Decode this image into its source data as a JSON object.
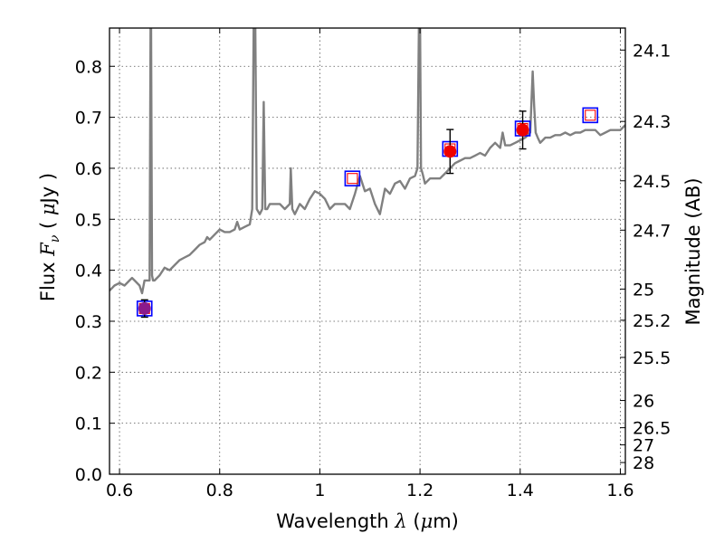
{
  "chart_data": {
    "type": "scatter",
    "xlabel": "Wavelength  λ (μm)",
    "xlabel_parts": {
      "text": "Wavelength  ",
      "sym": "λ",
      "open": " (",
      "unit_mu": "μ",
      "unit_rest": "m)"
    },
    "ylabel": "Flux  Fν  ( μJy )",
    "ylabel_parts": {
      "text": "Flux  ",
      "sym": "F",
      "sub": "ν",
      "open": "  ( ",
      "mu": "μ",
      "unit": "Jy )"
    },
    "y2label": "Magnitude (AB)",
    "xlim": [
      0.58,
      1.61
    ],
    "ylim": [
      0.0,
      0.875
    ],
    "grid": true,
    "x_ticks": [
      "0.6",
      "0.8",
      "1",
      "1.2",
      "1.4",
      "1.6"
    ],
    "x_tick_values": [
      0.6,
      0.8,
      1.0,
      1.2,
      1.4,
      1.6
    ],
    "y_ticks": [
      "0.0",
      "0.1",
      "0.2",
      "0.3",
      "0.4",
      "0.5",
      "0.6",
      "0.7",
      "0.8"
    ],
    "y_tick_values": [
      0.0,
      0.1,
      0.2,
      0.3,
      0.4,
      0.5,
      0.6,
      0.7,
      0.8
    ],
    "y2_ticks": [
      "24.1",
      "24.3",
      "24.5",
      "24.7",
      "25",
      "25.2",
      "25.5",
      "26",
      "26.5",
      "27",
      "28"
    ],
    "y2_tick_values": [
      24.1,
      24.3,
      24.5,
      24.7,
      25.0,
      25.2,
      25.5,
      26.0,
      26.5,
      27.0,
      28.0
    ],
    "series": [
      {
        "kind": "line",
        "color": "#808080",
        "x": [
          0.58,
          0.59,
          0.6,
          0.61,
          0.62,
          0.625,
          0.63,
          0.64,
          0.645,
          0.65,
          0.655,
          0.66,
          0.662,
          0.663,
          0.665,
          0.667,
          0.67,
          0.68,
          0.69,
          0.7,
          0.71,
          0.72,
          0.73,
          0.74,
          0.75,
          0.76,
          0.77,
          0.775,
          0.78,
          0.79,
          0.8,
          0.81,
          0.82,
          0.83,
          0.835,
          0.84,
          0.85,
          0.86,
          0.865,
          0.868,
          0.871,
          0.874,
          0.88,
          0.885,
          0.888,
          0.891,
          0.895,
          0.9,
          0.91,
          0.92,
          0.93,
          0.94,
          0.942,
          0.945,
          0.95,
          0.96,
          0.97,
          0.98,
          0.99,
          1.0,
          1.01,
          1.02,
          1.03,
          1.04,
          1.05,
          1.06,
          1.07,
          1.08,
          1.09,
          1.1,
          1.11,
          1.12,
          1.13,
          1.14,
          1.15,
          1.16,
          1.17,
          1.18,
          1.19,
          1.195,
          1.198,
          1.2,
          1.202,
          1.205,
          1.21,
          1.22,
          1.23,
          1.24,
          1.25,
          1.26,
          1.27,
          1.28,
          1.29,
          1.3,
          1.31,
          1.32,
          1.33,
          1.34,
          1.35,
          1.36,
          1.365,
          1.37,
          1.38,
          1.39,
          1.4,
          1.41,
          1.42,
          1.425,
          1.428,
          1.431,
          1.435,
          1.44,
          1.45,
          1.46,
          1.47,
          1.48,
          1.49,
          1.5,
          1.51,
          1.52,
          1.53,
          1.54,
          1.55,
          1.56,
          1.57,
          1.58,
          1.59,
          1.6,
          1.61
        ],
        "y": [
          0.36,
          0.37,
          0.375,
          0.37,
          0.38,
          0.385,
          0.38,
          0.37,
          0.355,
          0.38,
          0.38,
          0.38,
          0.9,
          0.9,
          0.39,
          0.38,
          0.38,
          0.39,
          0.405,
          0.4,
          0.41,
          0.42,
          0.425,
          0.43,
          0.44,
          0.45,
          0.455,
          0.465,
          0.46,
          0.47,
          0.48,
          0.475,
          0.475,
          0.48,
          0.495,
          0.48,
          0.485,
          0.49,
          0.52,
          0.9,
          0.9,
          0.52,
          0.51,
          0.52,
          0.73,
          0.52,
          0.52,
          0.53,
          0.53,
          0.53,
          0.52,
          0.53,
          0.6,
          0.52,
          0.51,
          0.53,
          0.52,
          0.54,
          0.555,
          0.55,
          0.54,
          0.52,
          0.53,
          0.53,
          0.53,
          0.52,
          0.55,
          0.585,
          0.555,
          0.56,
          0.53,
          0.51,
          0.56,
          0.55,
          0.57,
          0.575,
          0.56,
          0.58,
          0.585,
          0.6,
          0.9,
          0.9,
          0.6,
          0.59,
          0.57,
          0.58,
          0.58,
          0.58,
          0.59,
          0.6,
          0.61,
          0.615,
          0.62,
          0.62,
          0.625,
          0.63,
          0.625,
          0.64,
          0.65,
          0.64,
          0.67,
          0.645,
          0.645,
          0.65,
          0.655,
          0.66,
          0.67,
          0.79,
          0.72,
          0.67,
          0.66,
          0.65,
          0.66,
          0.66,
          0.665,
          0.665,
          0.67,
          0.665,
          0.67,
          0.67,
          0.675,
          0.675,
          0.675,
          0.665,
          0.67,
          0.675,
          0.675,
          0.675,
          0.685
        ]
      },
      {
        "kind": "model_squares",
        "x": [
          0.65,
          1.065,
          1.26,
          1.405,
          1.54
        ],
        "y": [
          0.325,
          0.58,
          0.638,
          0.678,
          0.704
        ]
      },
      {
        "kind": "observed_points",
        "x": [
          0.65,
          1.26,
          1.405
        ],
        "y": [
          0.325,
          0.633,
          0.675
        ],
        "yerr": [
          0.017,
          0.043,
          0.037
        ],
        "colors": [
          "#8b1a8b",
          "#ee0000",
          "#ee0000"
        ]
      }
    ],
    "colors": {
      "spectrum": "#808080",
      "square": "#0000ff",
      "square_inner": "#ff0000",
      "point": "#ee0000",
      "point_first": "#8b1a8b",
      "grid": "#555555"
    }
  }
}
